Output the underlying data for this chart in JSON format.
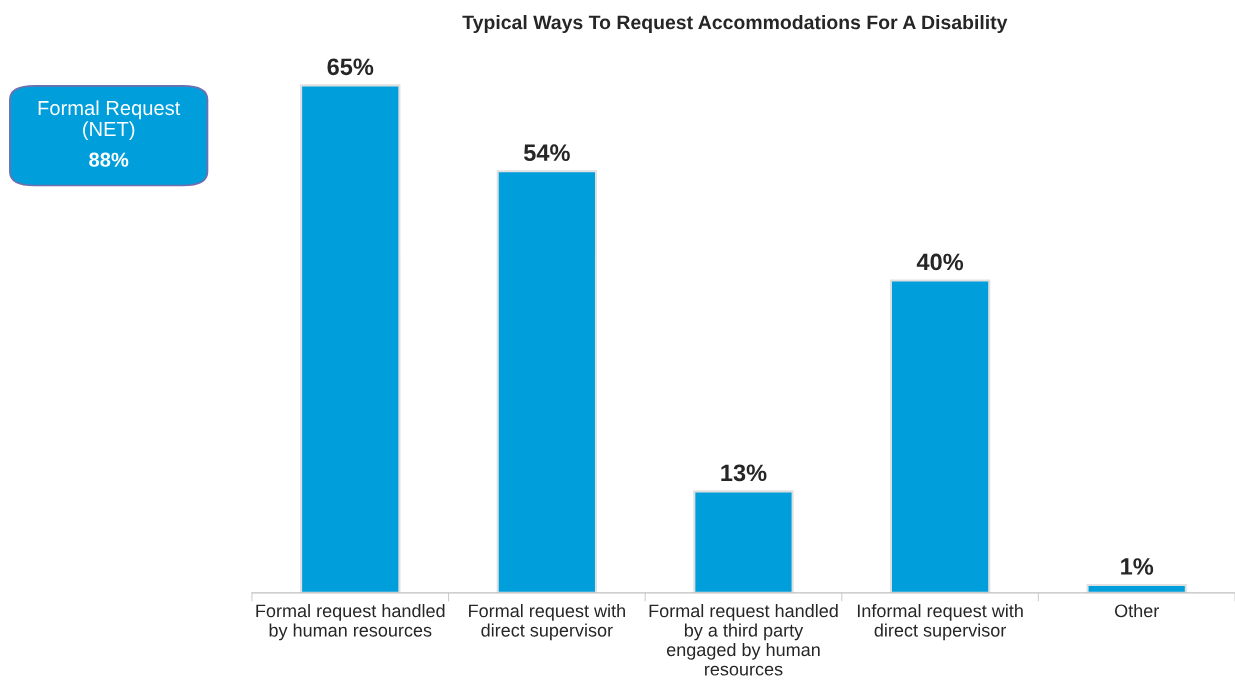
{
  "chart_data": {
    "type": "bar",
    "title": "Typical Ways To Request Accommodations For A Disability",
    "categories": [
      "Formal request handled\nby human resources",
      "Formal request with\ndirect supervisor",
      "Formal request handled\nby a third party\nengaged by human\nresources",
      "Informal request with\ndirect supervisor",
      "Other"
    ],
    "values": [
      65,
      54,
      13,
      40,
      1
    ],
    "value_labels": [
      "65%",
      "54%",
      "13%",
      "40%",
      "1%"
    ],
    "color": "#009fdb",
    "annotations": [
      "Formal Request\n(NET)",
      "88%"
    ],
    "grid": false,
    "legend": false
  }
}
